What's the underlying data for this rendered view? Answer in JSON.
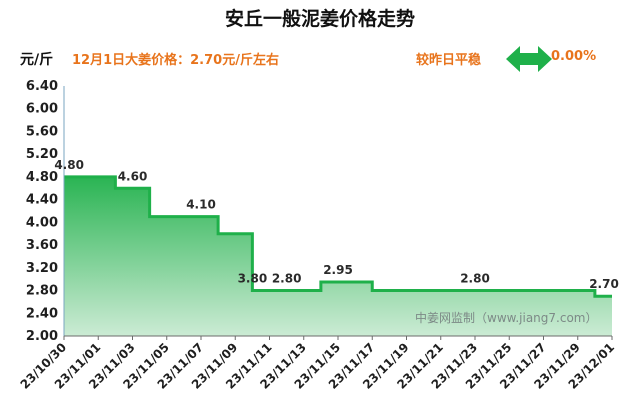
{
  "header": {
    "title": "安丘一般泥姜价格走势",
    "unit": "元/斤",
    "price_note": "12月1日大姜价格：2.70元/斤左右",
    "compare_label": "较昨日平稳",
    "compare_value": "0.00%",
    "compare_icon": "double-arrow-icon"
  },
  "watermark": "中姜网监制（www.jiang7.com）",
  "colors": {
    "line": "#1fb04a",
    "fill_top": "#1fb04a",
    "fill_bottom": "#c9ead2",
    "accent_text": "#e8741c"
  },
  "chart_data": {
    "type": "area",
    "xlabel": "",
    "ylabel": "元/斤",
    "ylim": [
      2.0,
      6.4
    ],
    "yticks": [
      "2.00",
      "2.40",
      "2.80",
      "3.20",
      "3.60",
      "4.00",
      "4.40",
      "4.80",
      "5.20",
      "5.60",
      "6.00",
      "6.40"
    ],
    "grid": false,
    "x_tick_labels": [
      "23/10/30",
      "23/11/01",
      "23/11/03",
      "23/11/05",
      "23/11/07",
      "23/11/09",
      "23/11/11",
      "23/11/13",
      "23/11/15",
      "23/11/17",
      "23/11/19",
      "23/11/21",
      "23/11/23",
      "23/11/25",
      "23/11/27",
      "23/11/29",
      "23/12/01"
    ],
    "x": [
      "2023-10-30",
      "2023-10-31",
      "2023-11-01",
      "2023-11-02",
      "2023-11-03",
      "2023-11-04",
      "2023-11-05",
      "2023-11-06",
      "2023-11-07",
      "2023-11-08",
      "2023-11-09",
      "2023-11-10",
      "2023-11-11",
      "2023-11-12",
      "2023-11-13",
      "2023-11-14",
      "2023-11-15",
      "2023-11-16",
      "2023-11-17",
      "2023-11-18",
      "2023-11-19",
      "2023-11-20",
      "2023-11-21",
      "2023-11-22",
      "2023-11-23",
      "2023-11-24",
      "2023-11-25",
      "2023-11-26",
      "2023-11-27",
      "2023-11-28",
      "2023-11-29",
      "2023-11-30",
      "2023-12-01"
    ],
    "values": [
      4.8,
      4.8,
      4.8,
      4.6,
      4.6,
      4.1,
      4.1,
      4.1,
      4.1,
      3.8,
      3.8,
      2.8,
      2.8,
      2.8,
      2.8,
      2.95,
      2.95,
      2.95,
      2.8,
      2.8,
      2.8,
      2.8,
      2.8,
      2.8,
      2.8,
      2.8,
      2.8,
      2.8,
      2.8,
      2.8,
      2.8,
      2.7,
      2.7
    ],
    "data_labels": [
      {
        "x": "2023-10-31",
        "text": "4.80"
      },
      {
        "x": "2023-11-03",
        "text": "4.60"
      },
      {
        "x": "2023-11-07",
        "text": "4.10"
      },
      {
        "x": "2023-11-10",
        "text": "3.80"
      },
      {
        "x": "2023-11-12",
        "text": "2.80"
      },
      {
        "x": "2023-11-15",
        "text": "2.95"
      },
      {
        "x": "2023-11-23",
        "text": "2.80"
      },
      {
        "x": "2023-12-01",
        "text": "2.70"
      }
    ]
  }
}
